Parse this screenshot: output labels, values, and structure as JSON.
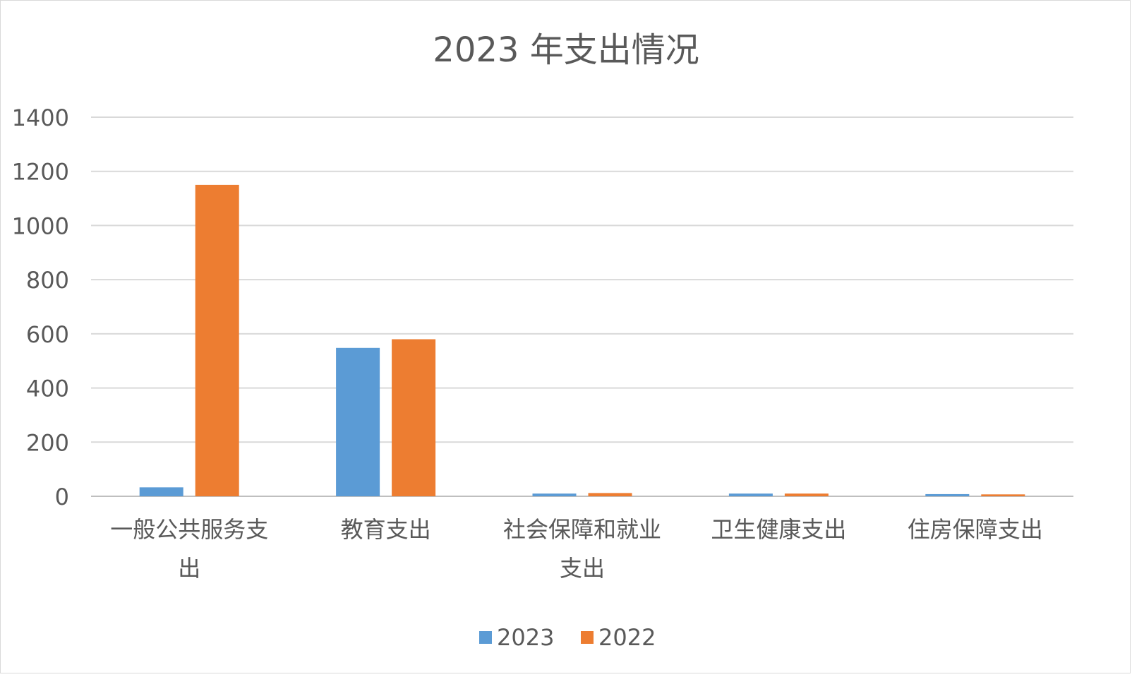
{
  "chart_data": {
    "type": "bar",
    "title": "2023 年支出情况",
    "xlabel": "",
    "ylabel": "",
    "ylim": [
      0,
      1400
    ],
    "yticks": [
      0,
      200,
      400,
      600,
      800,
      1000,
      1200,
      1400
    ],
    "categories": [
      [
        "一般公共服务支",
        "出"
      ],
      [
        "教育支出"
      ],
      [
        "社会保障和就业",
        "支出"
      ],
      [
        "卫生健康支出"
      ],
      [
        "住房保障支出"
      ]
    ],
    "series": [
      {
        "name": "2023",
        "color": "#5b9bd5",
        "values": [
          33,
          548,
          10,
          10,
          8
        ]
      },
      {
        "name": "2022",
        "color": "#ed7d31",
        "values": [
          1150,
          580,
          12,
          10,
          7
        ]
      }
    ],
    "grid": true,
    "legend_position": "bottom"
  }
}
